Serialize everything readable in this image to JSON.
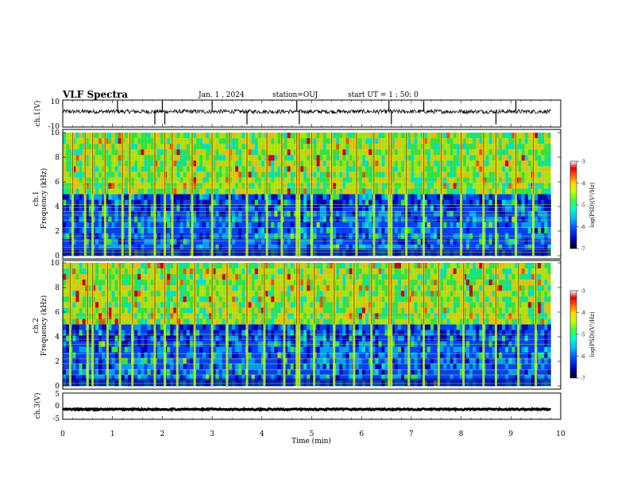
{
  "header": {
    "title": "VLF Spectra",
    "date": "Jan. 1 , 2024",
    "station": "station=OUJ",
    "start_ut": "start UT =  1 : 50: 0"
  },
  "colors": {
    "waveform": "#000000",
    "spectrogram_bg": "#0a1f9c",
    "line_noise": "#e8e020",
    "colormap": [
      "#000000",
      "#0000b4",
      "#0046ff",
      "#00b4ff",
      "#00ffc8",
      "#3cff3c",
      "#c8ff00",
      "#ffdc00",
      "#ff6400",
      "#e60000",
      "#ffffff"
    ]
  },
  "chart_data": [
    {
      "type": "line",
      "panel": "ch.1 waveform",
      "ylabel": "ch.1(V)",
      "ylim": [
        -10,
        10
      ],
      "yticks": [
        "10",
        "-10"
      ],
      "xlim": [
        0,
        10
      ],
      "baseline": 1.5,
      "noise_amplitude": 1.5,
      "spikes_min": [
        1.1,
        1.85,
        2.0,
        2.05,
        3.0,
        3.7,
        4.7,
        4.75,
        6.55,
        6.6,
        7.25,
        8.7,
        9.1
      ]
    },
    {
      "type": "heatmap",
      "panel": "ch.1 spectrogram",
      "ylabel_channel": "ch.1",
      "ylabel": "Frequency (kHz)",
      "ylim": [
        0,
        10
      ],
      "yticks": [
        "0",
        "2",
        "4",
        "6",
        "8",
        "10"
      ],
      "xlim": [
        0,
        9.8
      ],
      "colorbar": {
        "label": "log(PSD)(V²/Hz)",
        "range": [
          -7,
          -3
        ],
        "ticks": [
          "-3",
          "-4",
          "-5",
          "-6",
          "-7"
        ]
      },
      "line_frequencies_khz": [
        0.3,
        0.5,
        0.65,
        1.2,
        1.6,
        2.3,
        2.9,
        3.3,
        3.6,
        3.9,
        4.15,
        5.6,
        6.0
      ],
      "broadband_bursts_min": [
        0.2,
        0.45,
        0.6,
        0.85,
        1.2,
        1.35,
        1.85,
        2.05,
        2.2,
        2.6,
        3.0,
        3.35,
        3.7,
        4.1,
        4.4,
        4.7,
        4.75,
        5.0,
        5.4,
        5.9,
        6.25,
        6.55,
        6.6,
        6.9,
        7.25,
        7.6,
        8.0,
        8.45,
        8.7,
        9.1,
        9.45
      ]
    },
    {
      "type": "heatmap",
      "panel": "ch.2 spectrogram",
      "ylabel_channel": "ch.2",
      "ylabel": "Frequency (kHz)",
      "ylim": [
        0,
        10
      ],
      "yticks": [
        "0",
        "2",
        "4",
        "6",
        "8",
        "10"
      ],
      "xlim": [
        0,
        9.8
      ],
      "colorbar": {
        "label": "log(PSD)(V²/Hz)",
        "range": [
          -7,
          -3
        ],
        "ticks": [
          "-3",
          "-4",
          "-5",
          "-6",
          "-7"
        ]
      },
      "line_frequencies_khz": [
        0.2,
        0.9,
        1.3,
        1.8,
        2.2,
        2.6,
        3.4,
        3.8,
        4.2,
        5.6
      ],
      "broadband_bursts_min": [
        0.15,
        0.5,
        0.6,
        0.9,
        1.15,
        1.4,
        1.85,
        2.05,
        2.3,
        2.65,
        3.0,
        3.3,
        3.7,
        4.05,
        4.45,
        4.7,
        4.75,
        5.05,
        5.45,
        5.85,
        6.2,
        6.55,
        6.6,
        6.95,
        7.25,
        7.55,
        8.05,
        8.45,
        8.7,
        9.15,
        9.5
      ]
    },
    {
      "type": "line",
      "panel": "ch.3 waveform",
      "ylabel": "ch.3(V)",
      "ylim": [
        -5,
        5
      ],
      "yticks": [
        "5",
        "0",
        "-5"
      ],
      "xlim": [
        0,
        10
      ],
      "baseline": -1.2,
      "noise_amplitude": 0.25,
      "xlabel": "Time (min)",
      "xticks": [
        "0",
        "1",
        "2",
        "3",
        "4",
        "5",
        "6",
        "7",
        "8",
        "9",
        "10"
      ]
    }
  ]
}
